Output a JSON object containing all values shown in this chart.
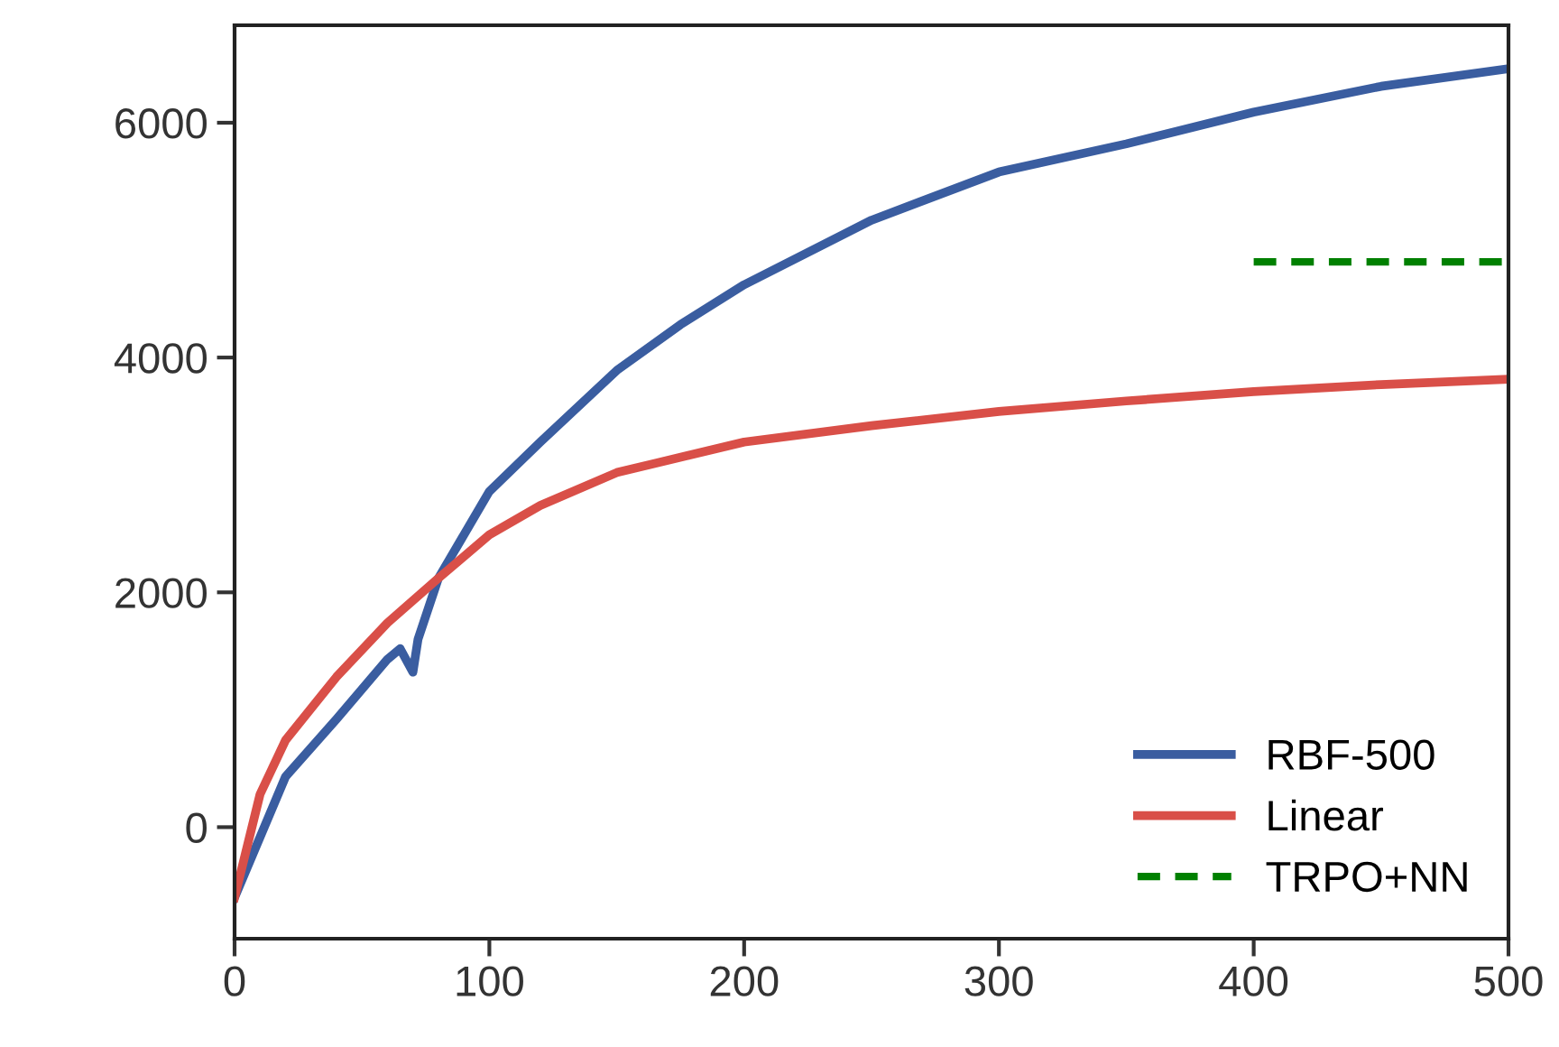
{
  "chart_data": {
    "type": "line",
    "xlim": [
      0,
      500
    ],
    "xticks": [
      0,
      100,
      200,
      300,
      400,
      500
    ],
    "ylim": [
      -950,
      6830
    ],
    "yticks": [
      0,
      2000,
      4000,
      6000
    ],
    "grid": false,
    "legend": "bottom right",
    "line_style": "solid",
    "marker": "none",
    "series": [
      {
        "name": "RBF-500",
        "color": "#3a5da0",
        "x": [
          0,
          20,
          40,
          60,
          65,
          70,
          72,
          80,
          100,
          120,
          150,
          175,
          200,
          250,
          300,
          350,
          400,
          450,
          500
        ],
        "values": [
          -600,
          430,
          920,
          1430,
          1520,
          1320,
          1600,
          2120,
          2860,
          3280,
          3890,
          4280,
          4620,
          5170,
          5580,
          5820,
          6090,
          6310,
          6460
        ]
      },
      {
        "name": "Linear",
        "color": "#d94f48",
        "x": [
          0,
          10,
          20,
          40,
          60,
          80,
          100,
          120,
          150,
          200,
          250,
          300,
          350,
          400,
          450,
          500
        ],
        "values": [
          -600,
          280,
          740,
          1280,
          1740,
          2120,
          2490,
          2740,
          3020,
          3280,
          3420,
          3540,
          3630,
          3710,
          3770,
          3815
        ]
      },
      {
        "name": "TRPO+NN",
        "color": "#008000",
        "line_style": "dashed",
        "x": [
          400,
          500
        ],
        "values": [
          4815,
          4815
        ]
      }
    ]
  }
}
